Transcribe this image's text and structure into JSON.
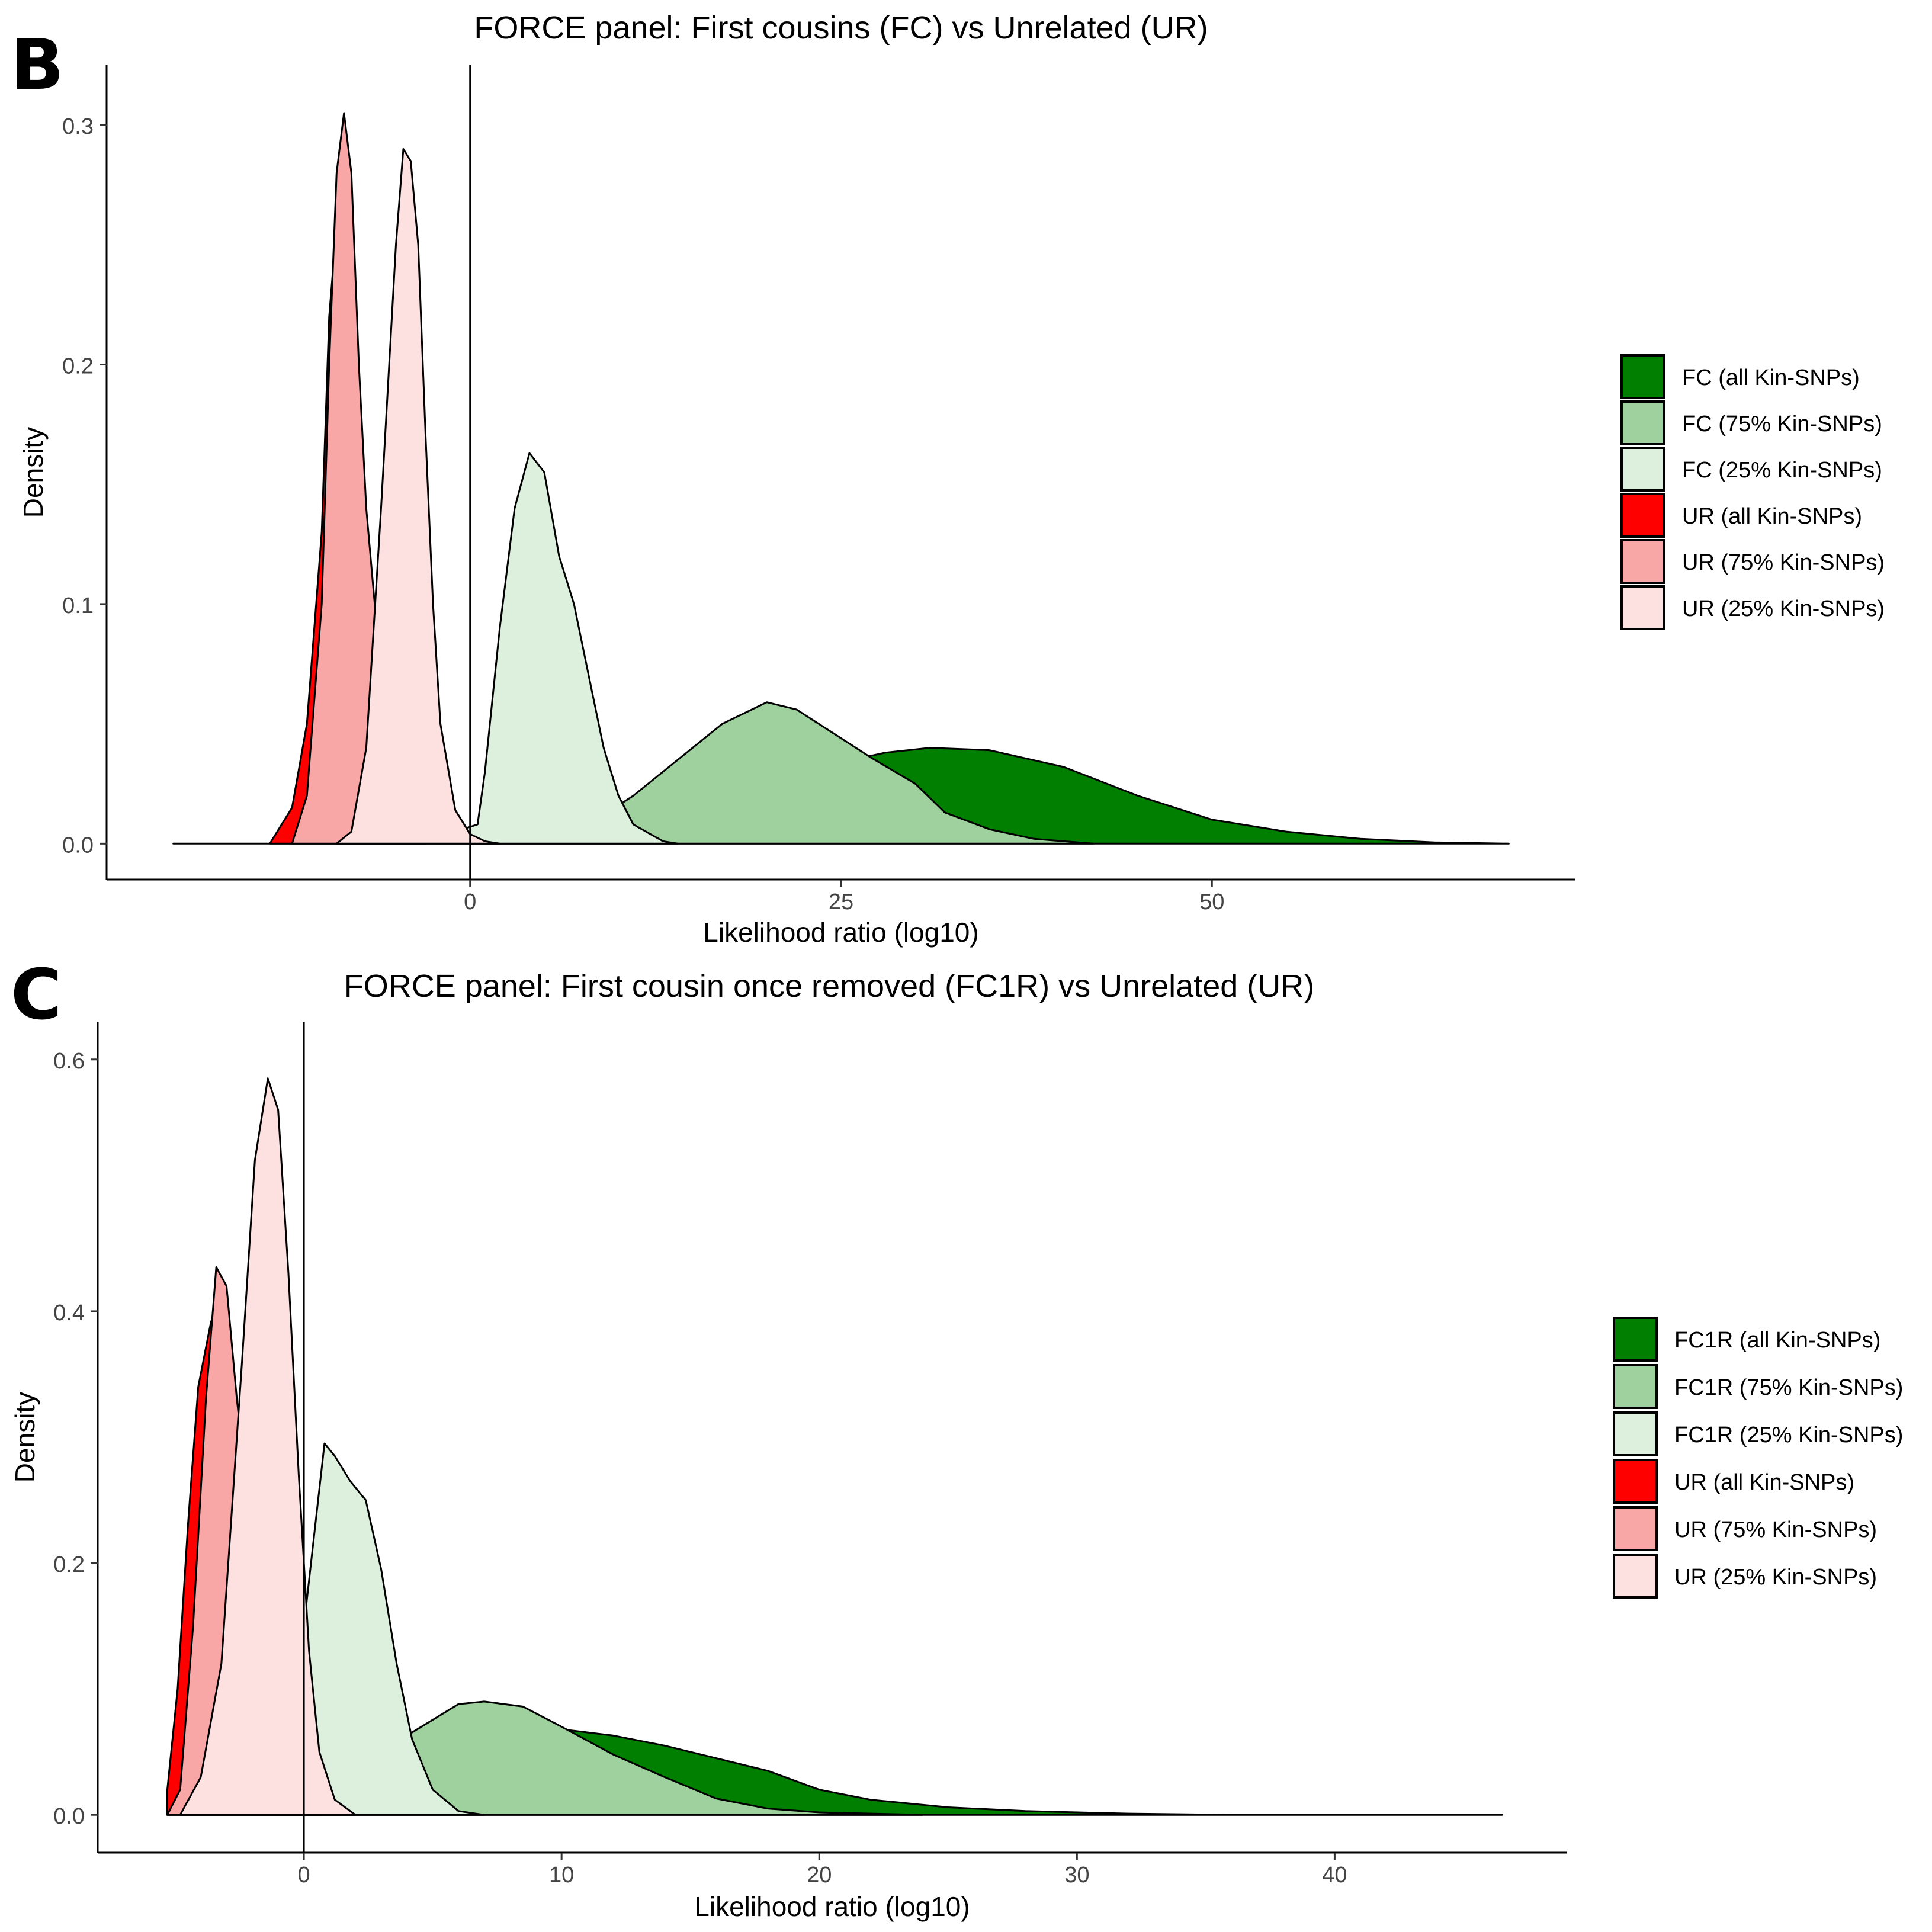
{
  "chart_data": [
    {
      "panel_letter": "B",
      "type": "area",
      "subtype": "density",
      "title": "FORCE panel: First cousins (FC) vs Unrelated (UR)",
      "xlabel": "Likelihood ratio (log10)",
      "ylabel": "Density",
      "xlim": [
        -24.5,
        74.5
      ],
      "ylim": [
        -0.015,
        0.325
      ],
      "xticks": [
        0,
        25,
        50
      ],
      "yticks": [
        0.0,
        0.1,
        0.2,
        0.3
      ],
      "xtick_labels": [
        "0",
        "25",
        "50"
      ],
      "ytick_labels": [
        "0.0",
        "0.1",
        "0.2",
        "0.3"
      ],
      "vline_x": 0,
      "legend_position": "right",
      "grid": false,
      "series": [
        {
          "name": "FC (all Kin-SNPs)",
          "color": "#007f00",
          "points": [
            [
              -20,
              0
            ],
            [
              -2,
              0
            ],
            [
              3,
              0.001
            ],
            [
              8,
              0.004
            ],
            [
              14,
              0.012
            ],
            [
              20,
              0.025
            ],
            [
              25,
              0.034
            ],
            [
              28,
              0.038
            ],
            [
              31,
              0.04
            ],
            [
              35,
              0.039
            ],
            [
              40,
              0.032
            ],
            [
              45,
              0.02
            ],
            [
              50,
              0.01
            ],
            [
              55,
              0.005
            ],
            [
              60,
              0.002
            ],
            [
              65,
              0.0005
            ],
            [
              70,
              0
            ]
          ]
        },
        {
          "name": "FC (75% Kin-SNPs)",
          "color": "#9fd19f",
          "points": [
            [
              0,
              0
            ],
            [
              5,
              0.002
            ],
            [
              8,
              0.008
            ],
            [
              11,
              0.02
            ],
            [
              14,
              0.035
            ],
            [
              17,
              0.05
            ],
            [
              20,
              0.059
            ],
            [
              22,
              0.056
            ],
            [
              24,
              0.048
            ],
            [
              27,
              0.036
            ],
            [
              30,
              0.025
            ],
            [
              32,
              0.013
            ],
            [
              35,
              0.006
            ],
            [
              38,
              0.002
            ],
            [
              42,
              0
            ]
          ]
        },
        {
          "name": "FC (25% Kin-SNPs)",
          "color": "#ddf0dd",
          "points": [
            [
              -2,
              0
            ],
            [
              -0.5,
              0.006
            ],
            [
              0.5,
              0.008
            ],
            [
              1,
              0.03
            ],
            [
              2,
              0.09
            ],
            [
              3,
              0.14
            ],
            [
              4,
              0.163
            ],
            [
              5,
              0.155
            ],
            [
              6,
              0.12
            ],
            [
              7,
              0.1
            ],
            [
              8,
              0.07
            ],
            [
              9,
              0.04
            ],
            [
              10,
              0.02
            ],
            [
              11,
              0.008
            ],
            [
              13,
              0.001
            ],
            [
              14,
              0
            ]
          ]
        },
        {
          "name": "UR (all Kin-SNPs)",
          "color": "#ff0000",
          "points": [
            [
              -13.5,
              0
            ],
            [
              -12,
              0.015
            ],
            [
              -11,
              0.05
            ],
            [
              -10,
              0.13
            ],
            [
              -9.5,
              0.22
            ],
            [
              -9,
              0.258
            ],
            [
              -8.5,
              0.23
            ],
            [
              -8,
              0.17
            ],
            [
              -7,
              0.1
            ],
            [
              -6.5,
              0.06
            ],
            [
              -6,
              0.03
            ],
            [
              -5,
              0.008
            ],
            [
              -4,
              0.001
            ],
            [
              -3,
              0
            ]
          ]
        },
        {
          "name": "UR (75% Kin-SNPs)",
          "color": "#f9a6a6",
          "points": [
            [
              -12,
              0
            ],
            [
              -11,
              0.02
            ],
            [
              -10,
              0.1
            ],
            [
              -9.5,
              0.2
            ],
            [
              -9,
              0.28
            ],
            [
              -8.5,
              0.305
            ],
            [
              -8,
              0.28
            ],
            [
              -7.5,
              0.2
            ],
            [
              -7,
              0.14
            ],
            [
              -6,
              0.07
            ],
            [
              -5,
              0.03
            ],
            [
              -4,
              0.008
            ],
            [
              -3,
              0.002
            ],
            [
              -2,
              0
            ]
          ]
        },
        {
          "name": "UR (25% Kin-SNPs)",
          "color": "#fde0e0",
          "points": [
            [
              -9,
              0
            ],
            [
              -8,
              0.005
            ],
            [
              -7,
              0.04
            ],
            [
              -6,
              0.14
            ],
            [
              -5,
              0.25
            ],
            [
              -4.5,
              0.29
            ],
            [
              -4,
              0.285
            ],
            [
              -3.5,
              0.25
            ],
            [
              -3,
              0.17
            ],
            [
              -2.5,
              0.1
            ],
            [
              -2,
              0.05
            ],
            [
              -1,
              0.014
            ],
            [
              0,
              0.004
            ],
            [
              1,
              0.001
            ],
            [
              2,
              0
            ]
          ]
        }
      ]
    },
    {
      "panel_letter": "C",
      "type": "area",
      "subtype": "density",
      "title": "FORCE panel: First cousin once removed (FC1R) vs Unrelated (UR)",
      "xlabel": "Likelihood ratio (log10)",
      "ylabel": "Density",
      "xlim": [
        -8,
        49
      ],
      "ylim": [
        -0.03,
        0.63
      ],
      "xticks": [
        0,
        10,
        20,
        30,
        40
      ],
      "yticks": [
        0.0,
        0.2,
        0.4,
        0.6
      ],
      "xtick_labels": [
        "0",
        "10",
        "20",
        "30",
        "40"
      ],
      "ytick_labels": [
        "0.0",
        "0.2",
        "0.4",
        "0.6"
      ],
      "vline_x": 0,
      "legend_position": "right",
      "grid": false,
      "series": [
        {
          "name": "FC1R (all Kin-SNPs)",
          "color": "#007f00",
          "points": [
            [
              -5.3,
              0
            ],
            [
              0,
              0.003
            ],
            [
              2,
              0.012
            ],
            [
              4,
              0.03
            ],
            [
              6,
              0.05
            ],
            [
              8,
              0.062
            ],
            [
              10,
              0.068
            ],
            [
              12,
              0.063
            ],
            [
              14,
              0.055
            ],
            [
              16,
              0.045
            ],
            [
              18,
              0.035
            ],
            [
              20,
              0.02
            ],
            [
              22,
              0.012
            ],
            [
              25,
              0.006
            ],
            [
              28,
              0.003
            ],
            [
              32,
              0.001
            ],
            [
              36,
              0
            ],
            [
              46.5,
              0
            ]
          ]
        },
        {
          "name": "FC1R (75% Kin-SNPs)",
          "color": "#9fd19f",
          "points": [
            [
              -1,
              0
            ],
            [
              1,
              0.012
            ],
            [
              2,
              0.03
            ],
            [
              4,
              0.063
            ],
            [
              6,
              0.088
            ],
            [
              7,
              0.09
            ],
            [
              8.5,
              0.086
            ],
            [
              10,
              0.07
            ],
            [
              12,
              0.048
            ],
            [
              14,
              0.03
            ],
            [
              16,
              0.013
            ],
            [
              18,
              0.005
            ],
            [
              20,
              0.002
            ],
            [
              24,
              0
            ]
          ]
        },
        {
          "name": "FC1R (25% Kin-SNPs)",
          "color": "#ddf0dd",
          "points": [
            [
              -2,
              0
            ],
            [
              -1,
              0.03
            ],
            [
              0,
              0.15
            ],
            [
              0.8,
              0.295
            ],
            [
              1.2,
              0.285
            ],
            [
              1.8,
              0.265
            ],
            [
              2.4,
              0.25
            ],
            [
              3,
              0.195
            ],
            [
              3.6,
              0.12
            ],
            [
              4.2,
              0.06
            ],
            [
              5,
              0.02
            ],
            [
              6,
              0.003
            ],
            [
              7,
              0
            ]
          ]
        },
        {
          "name": "UR (all Kin-SNPs)",
          "color": "#ff0000",
          "points": [
            [
              -5.3,
              0.02
            ],
            [
              -4.9,
              0.1
            ],
            [
              -4.5,
              0.23
            ],
            [
              -4.1,
              0.34
            ],
            [
              -3.6,
              0.392
            ],
            [
              -3.2,
              0.37
            ],
            [
              -2.7,
              0.28
            ],
            [
              -2.2,
              0.17
            ],
            [
              -1.7,
              0.09
            ],
            [
              -1.1,
              0.04
            ],
            [
              -0.5,
              0.015
            ],
            [
              0,
              0.005
            ],
            [
              0.7,
              0
            ]
          ]
        },
        {
          "name": "UR (75% Kin-SNPs)",
          "color": "#f9a6a6",
          "points": [
            [
              -5.3,
              0
            ],
            [
              -4.8,
              0.02
            ],
            [
              -4.3,
              0.15
            ],
            [
              -3.8,
              0.33
            ],
            [
              -3.4,
              0.435
            ],
            [
              -3.0,
              0.42
            ],
            [
              -2.6,
              0.33
            ],
            [
              -2.1,
              0.24
            ],
            [
              -1.6,
              0.18
            ],
            [
              -1.0,
              0.09
            ],
            [
              -0.4,
              0.04
            ],
            [
              0.2,
              0.012
            ],
            [
              1,
              0.003
            ],
            [
              1.5,
              0
            ]
          ]
        },
        {
          "name": "UR (25% Kin-SNPs)",
          "color": "#fde0e0",
          "points": [
            [
              -4.8,
              0
            ],
            [
              -4,
              0.03
            ],
            [
              -3.2,
              0.12
            ],
            [
              -2.4,
              0.36
            ],
            [
              -1.9,
              0.52
            ],
            [
              -1.4,
              0.585
            ],
            [
              -1.0,
              0.56
            ],
            [
              -0.6,
              0.43
            ],
            [
              -0.2,
              0.27
            ],
            [
              0.2,
              0.13
            ],
            [
              0.6,
              0.05
            ],
            [
              1.2,
              0.012
            ],
            [
              2,
              0
            ]
          ]
        }
      ]
    }
  ]
}
